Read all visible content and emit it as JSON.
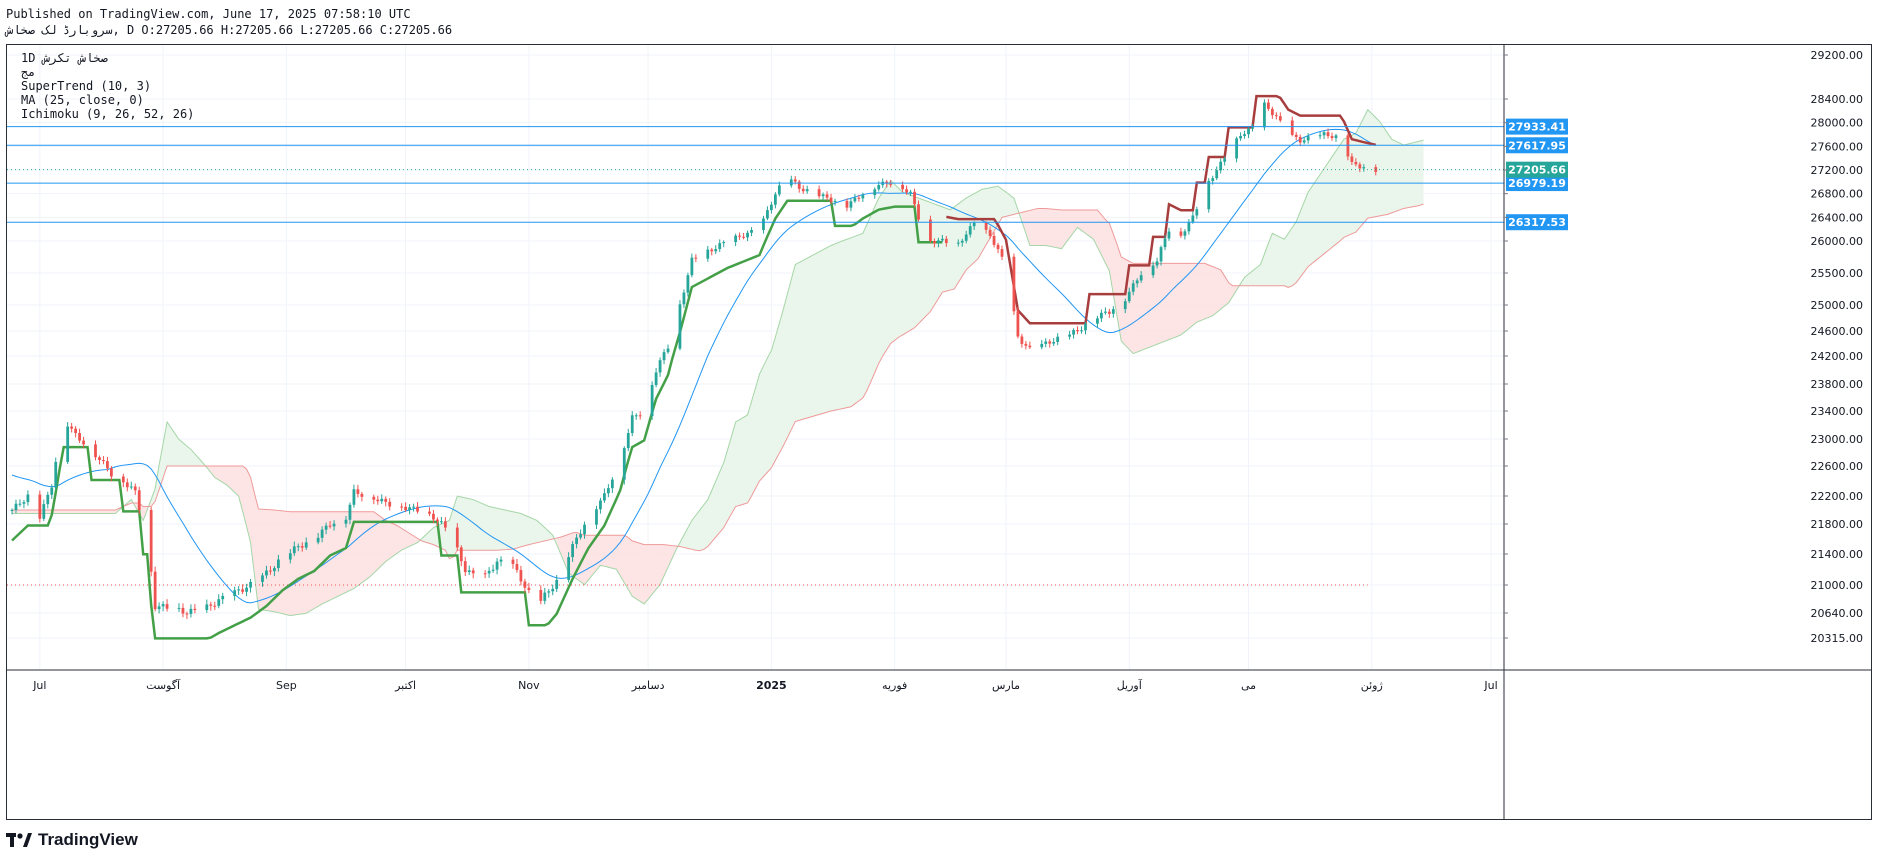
{
  "header": {
    "published": "Published on TradingView.com, June 17, 2025 07:58:10 UTC",
    "symbol_line": "سروبارڈ لک صخاش, D O:27205.66 H:27205.66 L:27205.66 C:27205.66"
  },
  "legend": {
    "symbol": "1D  صخاش تکرش",
    "exchange": "مج",
    "supertrend": "SuperTrend (10, 3)",
    "ma": "MA (25, close, 0)",
    "ichimoku": "Ichimoku (9, 26, 52, 26)"
  },
  "brand": {
    "name": "TradingView"
  },
  "colors": {
    "up": "#26a69a",
    "down": "#ef5350",
    "supertrend_up": "#43a047",
    "supertrend_down": "#a83d3d",
    "ma": "#2196f3",
    "hline": "#2196f3",
    "cloud_bull": "#e8f5e9",
    "cloud_bear": "#fde2e2",
    "last_price_bg": "#26a69a"
  },
  "chart_data": {
    "type": "candlestick",
    "title": "صخاش تکرش, 1D",
    "y_axis_ticks": [
      29200,
      28400,
      28000,
      27600,
      27200,
      26800,
      26400,
      26000,
      25500,
      25000,
      24600,
      24200,
      23800,
      23400,
      23000,
      22600,
      22200,
      21800,
      21400,
      21000,
      20640,
      20315
    ],
    "y_axis_tick_labels": [
      "29200.00",
      "28400.00",
      "28000.00",
      "27600.00",
      "27200.00",
      "26800.00",
      "26400.00",
      "26000.00",
      "25500.00",
      "25000.00",
      "24600.00",
      "24200.00",
      "23800.00",
      "23400.00",
      "23000.00",
      "22600.00",
      "22200.00",
      "21800.00",
      "21400.00",
      "21000.00",
      "20640.00",
      "20315.00"
    ],
    "x_axis_labels": [
      "Jul",
      "آگوست",
      "Sep",
      "اکتبر",
      "Nov",
      "دسامبر",
      "2025",
      "فوریه",
      "مارس",
      "آوریل",
      "می",
      "ژوئن",
      "Jul"
    ],
    "x_axis_label_days": [
      7,
      38,
      69,
      99,
      130,
      160,
      191,
      222,
      250,
      281,
      311,
      342,
      372
    ],
    "x_range_days": [
      0,
      374
    ],
    "horizontal_lines": [
      {
        "label": "27933.41",
        "value": 27933.41
      },
      {
        "label": "27617.95",
        "value": 27617.95
      },
      {
        "label": "26979.19",
        "value": 26979.19
      },
      {
        "label": "26317.53",
        "value": 26317.53
      }
    ],
    "last_price": {
      "label": "27205.66",
      "value": 27205.66
    },
    "reference_level": 21000,
    "price_path_keys": [
      [
        0,
        22000
      ],
      [
        4,
        22200
      ],
      [
        7,
        21900
      ],
      [
        10,
        22350
      ],
      [
        13,
        23300
      ],
      [
        16,
        23050
      ],
      [
        19,
        22900
      ],
      [
        22,
        22700
      ],
      [
        25,
        22500
      ],
      [
        28,
        22400
      ],
      [
        31,
        22250
      ],
      [
        34,
        21600
      ],
      [
        36,
        20730
      ],
      [
        40,
        20700
      ],
      [
        44,
        20650
      ],
      [
        48,
        20680
      ],
      [
        52,
        20800
      ],
      [
        56,
        20900
      ],
      [
        60,
        21000
      ],
      [
        64,
        21150
      ],
      [
        68,
        21350
      ],
      [
        72,
        21500
      ],
      [
        76,
        21600
      ],
      [
        80,
        21800
      ],
      [
        84,
        21900
      ],
      [
        86,
        22250
      ],
      [
        90,
        22200
      ],
      [
        94,
        22100
      ],
      [
        98,
        22050
      ],
      [
        102,
        22000
      ],
      [
        106,
        21900
      ],
      [
        110,
        21700
      ],
      [
        114,
        21200
      ],
      [
        118,
        21050
      ],
      [
        122,
        21300
      ],
      [
        126,
        21250
      ],
      [
        130,
        20900
      ],
      [
        133,
        20800
      ],
      [
        137,
        21050
      ],
      [
        141,
        21500
      ],
      [
        145,
        21900
      ],
      [
        149,
        22200
      ],
      [
        153,
        22700
      ],
      [
        156,
        23300
      ],
      [
        159,
        23400
      ],
      [
        162,
        24000
      ],
      [
        165,
        24350
      ],
      [
        168,
        25000
      ],
      [
        171,
        25700
      ],
      [
        174,
        25800
      ],
      [
        177,
        25900
      ],
      [
        180,
        26000
      ],
      [
        184,
        26100
      ],
      [
        188,
        26200
      ],
      [
        192,
        26800
      ],
      [
        195,
        27100
      ],
      [
        198,
        26900
      ],
      [
        202,
        26800
      ],
      [
        206,
        26700
      ],
      [
        210,
        26600
      ],
      [
        214,
        26800
      ],
      [
        218,
        26950
      ],
      [
        222,
        27000
      ],
      [
        226,
        26800
      ],
      [
        230,
        26000
      ],
      [
        234,
        26000
      ],
      [
        238,
        25950
      ],
      [
        242,
        26300
      ],
      [
        246,
        26100
      ],
      [
        250,
        25600
      ],
      [
        253,
        24500
      ],
      [
        256,
        24300
      ],
      [
        260,
        24400
      ],
      [
        264,
        24500
      ],
      [
        268,
        24600
      ],
      [
        272,
        24800
      ],
      [
        276,
        24900
      ],
      [
        280,
        25100
      ],
      [
        284,
        25500
      ],
      [
        288,
        25700
      ],
      [
        291,
        26200
      ],
      [
        294,
        26100
      ],
      [
        297,
        26400
      ],
      [
        300,
        26900
      ],
      [
        303,
        27200
      ],
      [
        306,
        27500
      ],
      [
        309,
        27800
      ],
      [
        312,
        27900
      ],
      [
        315,
        28300
      ],
      [
        318,
        28100
      ],
      [
        321,
        27800
      ],
      [
        324,
        27700
      ],
      [
        327,
        27750
      ],
      [
        330,
        27800
      ],
      [
        334,
        27750
      ],
      [
        337,
        27300
      ],
      [
        340,
        27250
      ],
      [
        343,
        27205.66
      ]
    ]
  }
}
